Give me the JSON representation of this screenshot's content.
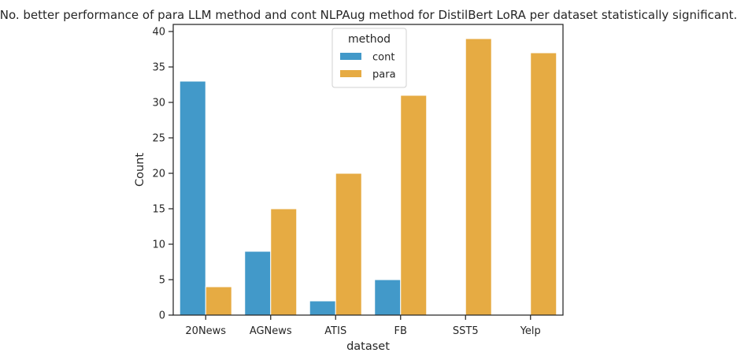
{
  "chart_data": {
    "type": "bar",
    "title": "No. better performance of para LLM method and cont NLPAug method for DistilBert LoRA per dataset statistically significant.",
    "xlabel": "dataset",
    "ylabel": "Count",
    "categories": [
      "20News",
      "AGNews",
      "ATIS",
      "FB",
      "SST5",
      "Yelp"
    ],
    "series": [
      {
        "name": "cont",
        "color": "#4299c9",
        "values": [
          33,
          9,
          2,
          5,
          0,
          0
        ]
      },
      {
        "name": "para",
        "color": "#e6ab43",
        "values": [
          4,
          15,
          20,
          31,
          39,
          37
        ]
      }
    ],
    "ylim": [
      0,
      41
    ],
    "yticks": [
      0,
      5,
      10,
      15,
      20,
      25,
      30,
      35,
      40
    ],
    "grid": false,
    "legend": {
      "title": "method",
      "placement": "top-center"
    }
  }
}
